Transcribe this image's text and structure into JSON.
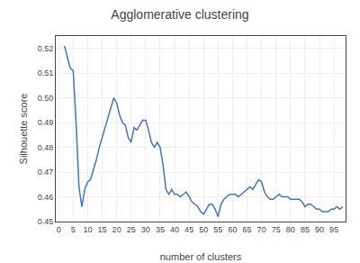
{
  "chart_data": {
    "type": "line",
    "title": "Agglomerative clustering",
    "xlabel": "number of clusters",
    "ylabel": "Silhouette score",
    "color": "#4472C4",
    "grid": true,
    "xlim": [
      -1,
      99
    ],
    "ylim": [
      0.45,
      0.525
    ],
    "xticks": [
      0,
      5,
      10,
      15,
      20,
      25,
      30,
      35,
      40,
      45,
      50,
      55,
      60,
      65,
      70,
      75,
      80,
      85,
      90,
      95
    ],
    "yticks": [
      0.45,
      0.46,
      0.47,
      0.48,
      0.49,
      {
        "value": 0.5,
        "label": "0.50"
      },
      0.51,
      0.52
    ],
    "x": [
      2,
      3,
      4,
      5,
      6,
      7,
      8,
      9,
      10,
      11,
      12,
      13,
      14,
      15,
      16,
      17,
      18,
      19,
      20,
      21,
      22,
      23,
      24,
      25,
      26,
      27,
      28,
      29,
      30,
      31,
      32,
      33,
      34,
      35,
      36,
      37,
      38,
      39,
      40,
      41,
      42,
      43,
      44,
      45,
      46,
      47,
      48,
      49,
      50,
      51,
      52,
      53,
      54,
      55,
      56,
      57,
      58,
      59,
      60,
      61,
      62,
      63,
      64,
      65,
      66,
      67,
      68,
      69,
      70,
      71,
      72,
      73,
      74,
      75,
      76,
      77,
      78,
      79,
      80,
      81,
      82,
      83,
      84,
      85,
      86,
      87,
      88,
      89,
      90,
      91,
      92,
      93,
      94,
      95,
      96,
      97,
      98
    ],
    "values": [
      0.521,
      0.516,
      0.512,
      0.511,
      0.49,
      0.464,
      0.456,
      0.463,
      0.466,
      0.467,
      0.471,
      0.475,
      0.48,
      0.484,
      0.488,
      0.492,
      0.496,
      0.5,
      0.498,
      0.493,
      0.49,
      0.489,
      0.484,
      0.482,
      0.488,
      0.487,
      0.489,
      0.491,
      0.491,
      0.487,
      0.482,
      0.48,
      0.482,
      0.48,
      0.473,
      0.463,
      0.461,
      0.463,
      0.461,
      0.461,
      0.46,
      0.461,
      0.462,
      0.46,
      0.458,
      0.457,
      0.456,
      0.454,
      0.453,
      0.455,
      0.457,
      0.457,
      0.455,
      0.452,
      0.457,
      0.459,
      0.46,
      0.461,
      0.461,
      0.461,
      0.46,
      0.461,
      0.462,
      0.463,
      0.464,
      0.463,
      0.465,
      0.467,
      0.466,
      0.462,
      0.46,
      0.459,
      0.459,
      0.46,
      0.461,
      0.46,
      0.46,
      0.46,
      0.459,
      0.459,
      0.459,
      0.459,
      0.458,
      0.456,
      0.457,
      0.457,
      0.456,
      0.455,
      0.455,
      0.454,
      0.454,
      0.454,
      0.455,
      0.455,
      0.456,
      0.455,
      0.456
    ]
  }
}
